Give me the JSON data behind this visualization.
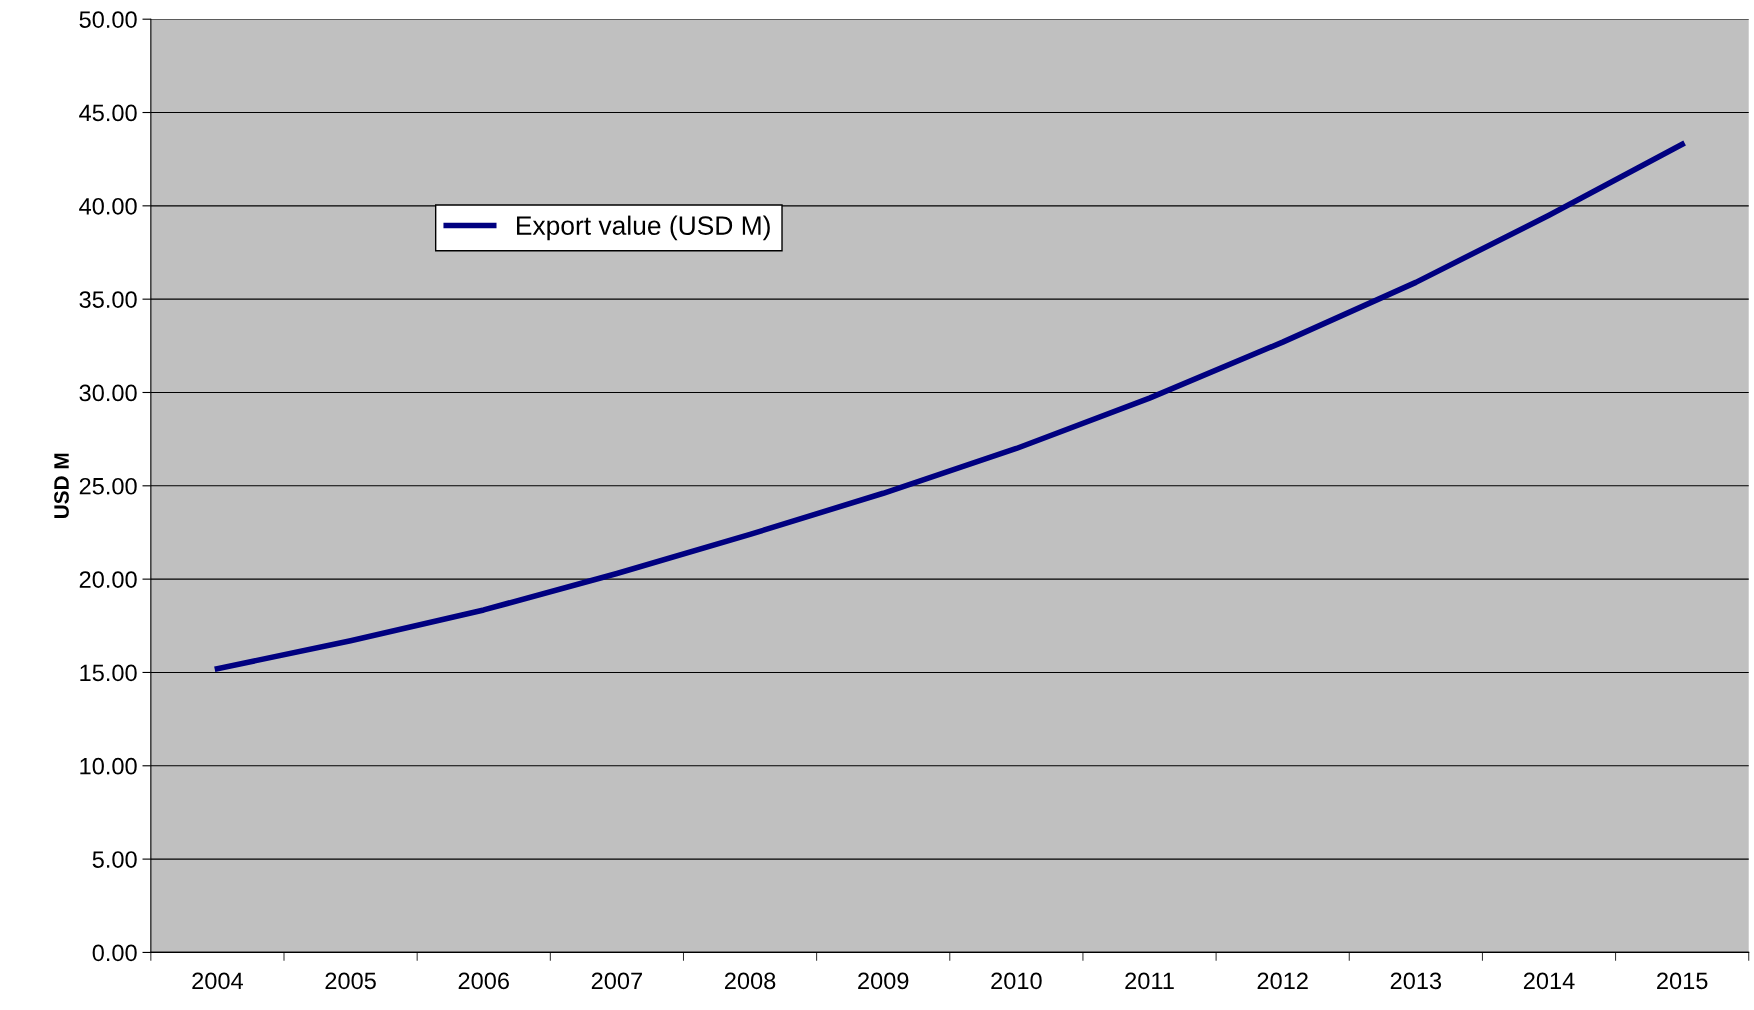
{
  "chart_data": {
    "type": "line",
    "ylabel": "USD M",
    "categories": [
      "2004",
      "2005",
      "2006",
      "2007",
      "2008",
      "2009",
      "2010",
      "2011",
      "2012",
      "2013",
      "2014",
      "2015"
    ],
    "series": [
      {
        "name": "Export value (USD M)",
        "color": "#000080",
        "values": [
          15.2,
          16.7,
          18.35,
          20.3,
          22.4,
          24.6,
          27.0,
          29.7,
          32.7,
          35.9,
          39.5,
          43.3
        ]
      }
    ],
    "ylim": [
      0,
      50
    ],
    "yticks": [
      {
        "value": 0,
        "label": "0.00"
      },
      {
        "value": 5,
        "label": "5.00"
      },
      {
        "value": 10,
        "label": "10.00"
      },
      {
        "value": 15,
        "label": "15.00"
      },
      {
        "value": 20,
        "label": "20.00"
      },
      {
        "value": 25,
        "label": "25.00"
      },
      {
        "value": 30,
        "label": "30.00"
      },
      {
        "value": 35,
        "label": "35.00"
      },
      {
        "value": 40,
        "label": "40.00"
      },
      {
        "value": 45,
        "label": "45.00"
      },
      {
        "value": 50,
        "label": "50.00"
      }
    ],
    "grid": "y",
    "legend": "top left",
    "marker": "none",
    "line_style": "solid"
  }
}
